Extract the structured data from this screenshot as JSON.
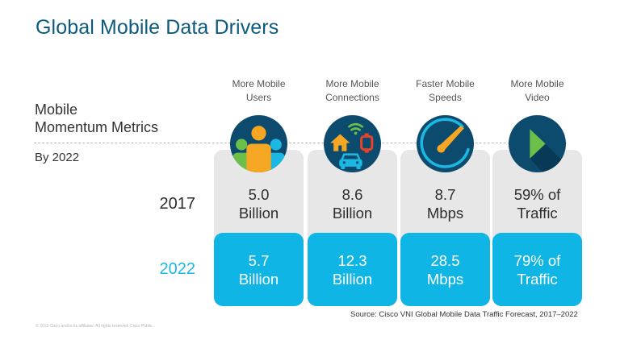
{
  "title": "Global Mobile Data Drivers",
  "side_title": {
    "line1": "Mobile",
    "line2": "Momentum Metrics",
    "subtitle": "By 2022"
  },
  "row_labels": {
    "base_year": "2017",
    "forecast_year": "2022"
  },
  "colors": {
    "title": "#0d5a80",
    "accent_cyan": "#0fb5e4",
    "card_gray": "#e7e7e7",
    "icon_navy": "#0c4a6e",
    "orange": "#f5a623",
    "green": "#6cc04a",
    "red": "#e8412c"
  },
  "metrics": [
    {
      "heading_line1": "More Mobile",
      "heading_line2": "Users",
      "icon": "users-icon",
      "v2017_line1": "5.0",
      "v2017_line2": "Billion",
      "v2022_line1": "5.7",
      "v2022_line2": "Billion"
    },
    {
      "heading_line1": "More Mobile",
      "heading_line2": "Connections",
      "icon": "connected-devices-icon",
      "v2017_line1": "8.6",
      "v2017_line2": "Billion",
      "v2022_line1": "12.3",
      "v2022_line2": "Billion"
    },
    {
      "heading_line1": "Faster Mobile",
      "heading_line2": "Speeds",
      "icon": "speedometer-icon",
      "v2017_line1": "8.7",
      "v2017_line2": "Mbps",
      "v2022_line1": "28.5",
      "v2022_line2": "Mbps"
    },
    {
      "heading_line1": "More Mobile",
      "heading_line2": "Video",
      "icon": "play-icon",
      "v2017_line1": "59% of",
      "v2017_line2": "Traffic",
      "v2022_line1": "79% of",
      "v2022_line2": "Traffic"
    }
  ],
  "source": "Source:  Cisco VNI Global Mobile Data Traffic Forecast, 2017–2022",
  "footer": "© 2019  Cisco  and/or  its affiliates.  All rights  reserved.   Cisco  Public"
}
